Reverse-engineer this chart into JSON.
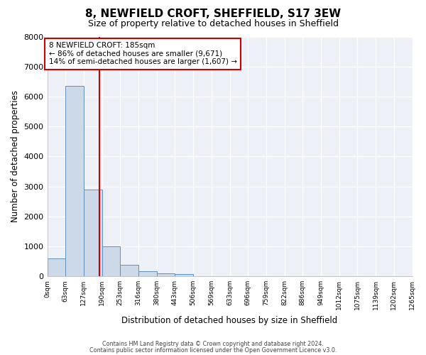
{
  "title": "8, NEWFIELD CROFT, SHEFFIELD, S17 3EW",
  "subtitle": "Size of property relative to detached houses in Sheffield",
  "xlabel": "Distribution of detached houses by size in Sheffield",
  "ylabel": "Number of detached properties",
  "bar_values": [
    600,
    6350,
    2900,
    1000,
    380,
    175,
    110,
    65,
    0,
    0,
    0,
    0,
    0,
    0,
    0,
    0,
    0,
    0,
    0,
    0
  ],
  "bar_labels": [
    "0sqm",
    "63sqm",
    "127sqm",
    "190sqm",
    "253sqm",
    "316sqm",
    "380sqm",
    "443sqm",
    "506sqm",
    "569sqm",
    "633sqm",
    "696sqm",
    "759sqm",
    "822sqm",
    "886sqm",
    "949sqm",
    "1012sqm",
    "1075sqm",
    "1139sqm",
    "1202sqm",
    "1265sqm"
  ],
  "bar_color": "#ccd9e8",
  "bar_edge_color": "#6090bb",
  "ylim": [
    0,
    8000
  ],
  "yticks": [
    0,
    1000,
    2000,
    3000,
    4000,
    5000,
    6000,
    7000,
    8000
  ],
  "property_line_x": 2.86,
  "property_line_color": "#cc0000",
  "annotation_text": "8 NEWFIELD CROFT: 185sqm\n← 86% of detached houses are smaller (9,671)\n14% of semi-detached houses are larger (1,607) →",
  "annotation_box_color": "#cc0000",
  "background_color": "#edf1f7",
  "footer_line1": "Contains HM Land Registry data © Crown copyright and database right 2024.",
  "footer_line2": "Contains public sector information licensed under the Open Government Licence v3.0."
}
